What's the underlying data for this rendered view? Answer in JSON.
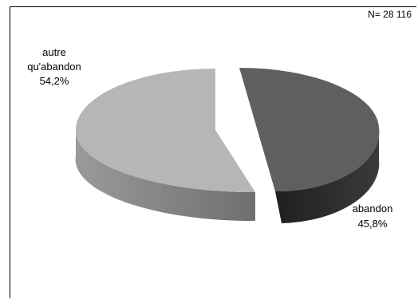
{
  "chart_data": {
    "type": "pie",
    "note": "N= 28 116",
    "slices": [
      {
        "label": "abandon",
        "value": 45.8,
        "value_label": "45,8%",
        "color": "#5f5f5f",
        "side_color": "#2d2d2d"
      },
      {
        "label": "autre qu'abandon",
        "value": 54.2,
        "value_label": "54,2%",
        "color": "#b6b6b6",
        "side_color": "#858585"
      }
    ]
  }
}
